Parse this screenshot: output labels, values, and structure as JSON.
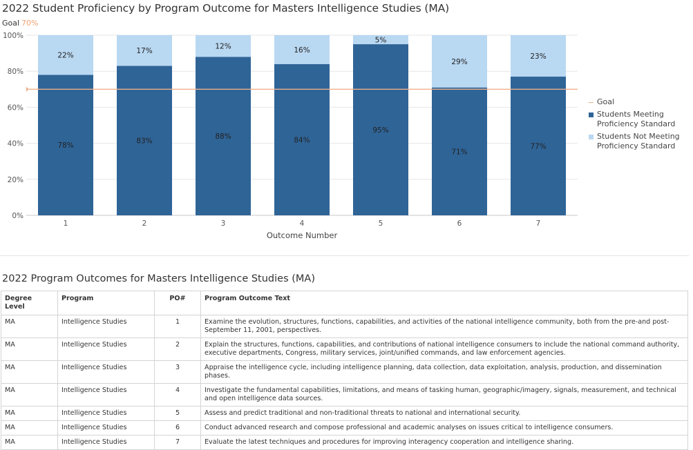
{
  "chart_title": "2022 Student Proficiency by Program Outcome for Masters Intelligence Studies (MA)",
  "goal_caption": {
    "label": "Goal",
    "value": "70%"
  },
  "chart_data": {
    "type": "bar",
    "stacked": true,
    "title": "2022 Student Proficiency by Program Outcome for Masters Intelligence Studies (MA)",
    "xlabel": "Outcome Number",
    "ylabel": "",
    "categories": [
      "1",
      "2",
      "3",
      "4",
      "5",
      "6",
      "7"
    ],
    "series": [
      {
        "name": "Students Meeting Proficiency Standard",
        "values": [
          78,
          83,
          88,
          84,
          95,
          71,
          77
        ],
        "labels": [
          "78%",
          "83%",
          "88%",
          "84%",
          "95%",
          "71%",
          "77%"
        ],
        "color": "#2f6497"
      },
      {
        "name": "Students Not Meeting Proficiency Standard",
        "values": [
          22,
          17,
          12,
          16,
          5,
          29,
          23
        ],
        "labels": [
          "22%",
          "17%",
          "12%",
          "16%",
          "5%",
          "29%",
          "23%"
        ],
        "color": "#b9d8f2"
      }
    ],
    "goal": {
      "name": "Goal",
      "value": 70,
      "color": "#f0b08a"
    },
    "ylim": [
      0,
      100
    ],
    "yticks": [
      0,
      20,
      40,
      60,
      80,
      100
    ],
    "ytick_labels": [
      "0%",
      "20%",
      "40%",
      "60%",
      "80%",
      "100%"
    ],
    "grid": true,
    "legend_position": "right",
    "legend": [
      "Goal",
      "Students Meeting Proficiency Standard",
      "Students Not Meeting Proficiency Standard"
    ]
  },
  "table": {
    "title": "2022 Program Outcomes for Masters Intelligence Studies (MA)",
    "headers": [
      "Degree Level",
      "Program",
      "PO#",
      "Program Outcome Text"
    ],
    "rows": [
      [
        "MA",
        "Intelligence Studies",
        "1",
        "Examine the evolution, structures, functions, capabilities, and activities of the national intelligence community, both from the pre-and post-September 11, 2001, perspectives."
      ],
      [
        "MA",
        "Intelligence Studies",
        "2",
        "Explain the structures, functions, capabilities, and contributions of national intelligence consumers to include the national command authority, executive departments, Congress, military services, joint/unified commands, and law enforcement agencies."
      ],
      [
        "MA",
        "Intelligence Studies",
        "3",
        "Appraise the intelligence cycle, including intelligence planning, data collection, data exploitation, analysis, production, and dissemination phases."
      ],
      [
        "MA",
        "Intelligence Studies",
        "4",
        "Investigate the fundamental capabilities, limitations, and means of tasking human, geographic/imagery, signals, measurement, and technical and open intelligence data sources."
      ],
      [
        "MA",
        "Intelligence Studies",
        "5",
        "Assess and predict traditional and non-traditional threats to national and international security."
      ],
      [
        "MA",
        "Intelligence Studies",
        "6",
        "Conduct advanced research and compose professional and academic analyses on issues critical to intelligence consumers."
      ],
      [
        "MA",
        "Intelligence Studies",
        "7",
        "Evaluate the latest techniques and procedures for improving interagency cooperation and intelligence sharing."
      ]
    ]
  }
}
